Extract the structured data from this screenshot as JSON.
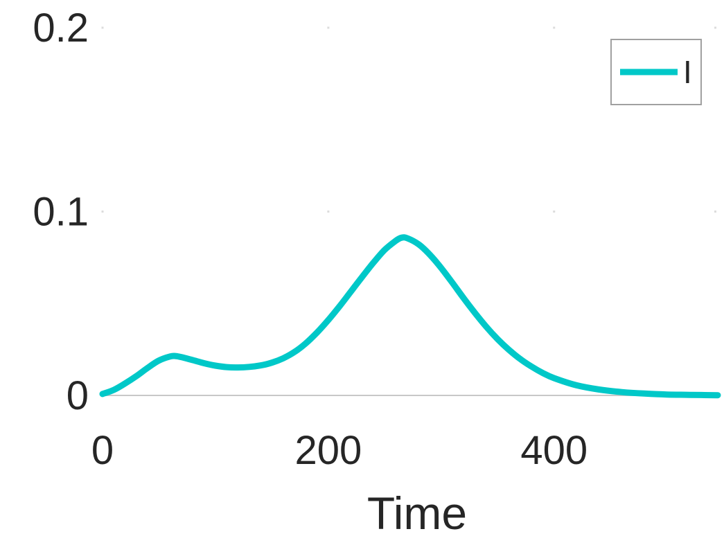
{
  "chart_data": {
    "type": "line",
    "xlabel": "Time",
    "ylabel": "",
    "xlim": [
      0,
      545
    ],
    "ylim": [
      0,
      0.2
    ],
    "x_ticks": [
      0,
      200,
      400
    ],
    "x_tick_labels": [
      "0",
      "200",
      "400"
    ],
    "y_ticks": [
      0,
      0.1,
      0.2
    ],
    "y_tick_labels": [
      "0",
      "0.1",
      "0.2"
    ],
    "grid": false,
    "legend_position": "top-right",
    "series": [
      {
        "name": "I",
        "color": "#00c8c8",
        "x": [
          0,
          10,
          20,
          30,
          40,
          50,
          60,
          65,
          70,
          80,
          90,
          100,
          110,
          120,
          130,
          140,
          150,
          160,
          170,
          180,
          190,
          200,
          210,
          220,
          230,
          240,
          250,
          260,
          265,
          270,
          280,
          290,
          300,
          310,
          320,
          330,
          340,
          350,
          360,
          370,
          380,
          390,
          400,
          420,
          440,
          460,
          480,
          500,
          520,
          545
        ],
        "y": [
          0.0008,
          0.003,
          0.0065,
          0.0105,
          0.015,
          0.019,
          0.0212,
          0.0214,
          0.0208,
          0.0192,
          0.0175,
          0.0162,
          0.0154,
          0.0152,
          0.0155,
          0.0163,
          0.0178,
          0.0202,
          0.0236,
          0.0283,
          0.0342,
          0.041,
          0.0485,
          0.0565,
          0.0645,
          0.0722,
          0.0792,
          0.0842,
          0.0858,
          0.0855,
          0.0822,
          0.0765,
          0.0693,
          0.0612,
          0.0528,
          0.0448,
          0.0373,
          0.0306,
          0.0248,
          0.0198,
          0.0157,
          0.0122,
          0.0094,
          0.0055,
          0.0032,
          0.0018,
          0.001,
          0.0005,
          0.0003,
          0.0001
        ]
      }
    ]
  }
}
